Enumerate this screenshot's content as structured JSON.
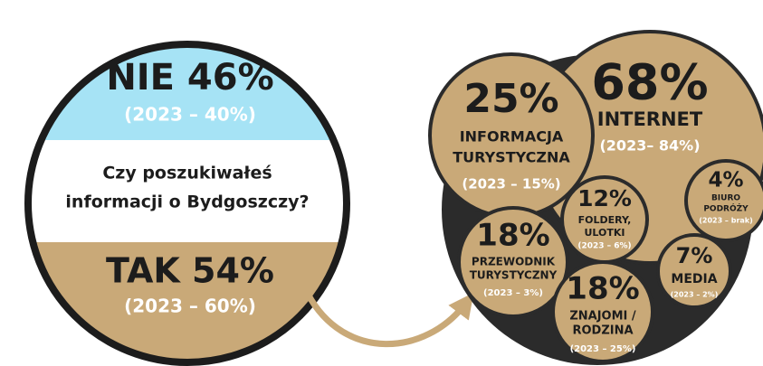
{
  "left": {
    "no": {
      "value": "NIE 46%",
      "previous": "(2023 – 40%)"
    },
    "question": [
      "Czy poszukiwałeś",
      "informacji o Bydgoszczy?"
    ],
    "yes": {
      "value": "TAK 54%",
      "previous": "(2023 – 60%)"
    }
  },
  "sources": [
    {
      "value": "68%",
      "label": [
        "INTERNET"
      ],
      "previous": "(2023– 84%)"
    },
    {
      "value": "25%",
      "label": [
        "INFORMACJA",
        "TURYSTYCZNA"
      ],
      "previous": "(2023 – 15%)"
    },
    {
      "value": "12%",
      "label": [
        "FOLDERY,",
        "ULOTKI"
      ],
      "previous": "(2023 – 6%)"
    },
    {
      "value": "4%",
      "label": [
        "BIURO",
        "PODRÓŻY"
      ],
      "previous": "(2023 – brak)"
    },
    {
      "value": "18%",
      "label": [
        "PRZEWODNIK",
        "TURYSTYCZNY"
      ],
      "previous": "(2023 – 3%)"
    },
    {
      "value": "7%",
      "label": [
        "MEDIA"
      ],
      "previous": "(2023 – 2%)"
    },
    {
      "value": "18%",
      "label": [
        "ZNAJOMI /",
        "RODZINA"
      ],
      "previous": "(2023 – 25%)"
    }
  ]
}
